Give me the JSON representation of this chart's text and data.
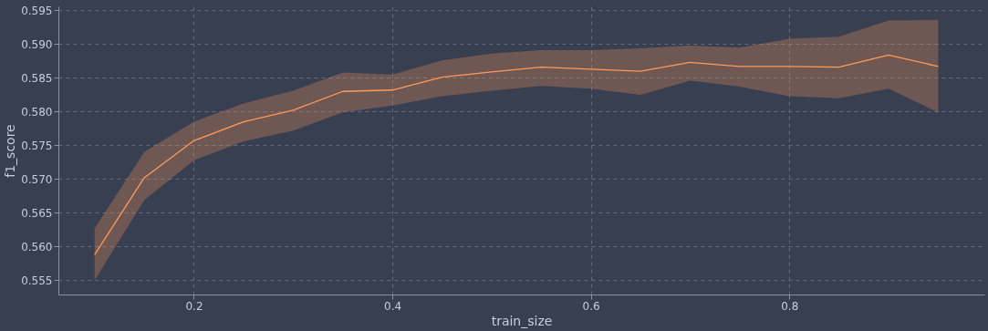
{
  "chart_data": {
    "type": "line",
    "xlabel": "train_size",
    "ylabel": "f1_score",
    "x": [
      0.1,
      0.15,
      0.2,
      0.25,
      0.3,
      0.35,
      0.4,
      0.45,
      0.5,
      0.55,
      0.6,
      0.65,
      0.7,
      0.75,
      0.8,
      0.85,
      0.9,
      0.95
    ],
    "series": [
      {
        "color": "#ff9a5a",
        "values": [
          0.5588,
          0.5702,
          0.5757,
          0.5785,
          0.5802,
          0.583,
          0.5832,
          0.5851,
          0.5859,
          0.5866,
          0.5863,
          0.586,
          0.5873,
          0.5867,
          0.5867,
          0.5866,
          0.5884,
          0.5867
        ],
        "lower": [
          0.555,
          0.5669,
          0.5728,
          0.5756,
          0.5772,
          0.5799,
          0.5809,
          0.5823,
          0.5831,
          0.5838,
          0.5834,
          0.5825,
          0.5846,
          0.5837,
          0.5823,
          0.582,
          0.5834,
          0.5799
        ],
        "upper": [
          0.5627,
          0.574,
          0.5785,
          0.5812,
          0.5831,
          0.5858,
          0.5855,
          0.5876,
          0.5886,
          0.5891,
          0.5891,
          0.5894,
          0.5898,
          0.5895,
          0.5908,
          0.5911,
          0.5935,
          0.5936
        ]
      }
    ],
    "xlim": [
      0.0635,
      0.9965
    ],
    "ylim": [
      0.5529,
      0.5956
    ],
    "xticks": [
      {
        "value": 0.2,
        "label": "0.2"
      },
      {
        "value": 0.4,
        "label": "0.4"
      },
      {
        "value": 0.6,
        "label": "0.6"
      },
      {
        "value": 0.8,
        "label": "0.8"
      }
    ],
    "yticks": [
      0.555,
      {
        "value": 0.56,
        "label": "0.560"
      },
      0.565,
      {
        "value": 0.57,
        "label": "0.570"
      },
      0.575,
      {
        "value": 0.58,
        "label": "0.580"
      },
      0.585,
      {
        "value": 0.59,
        "label": "0.590"
      },
      0.595
    ],
    "grid": true,
    "marker": "none",
    "line_style": "solid"
  }
}
